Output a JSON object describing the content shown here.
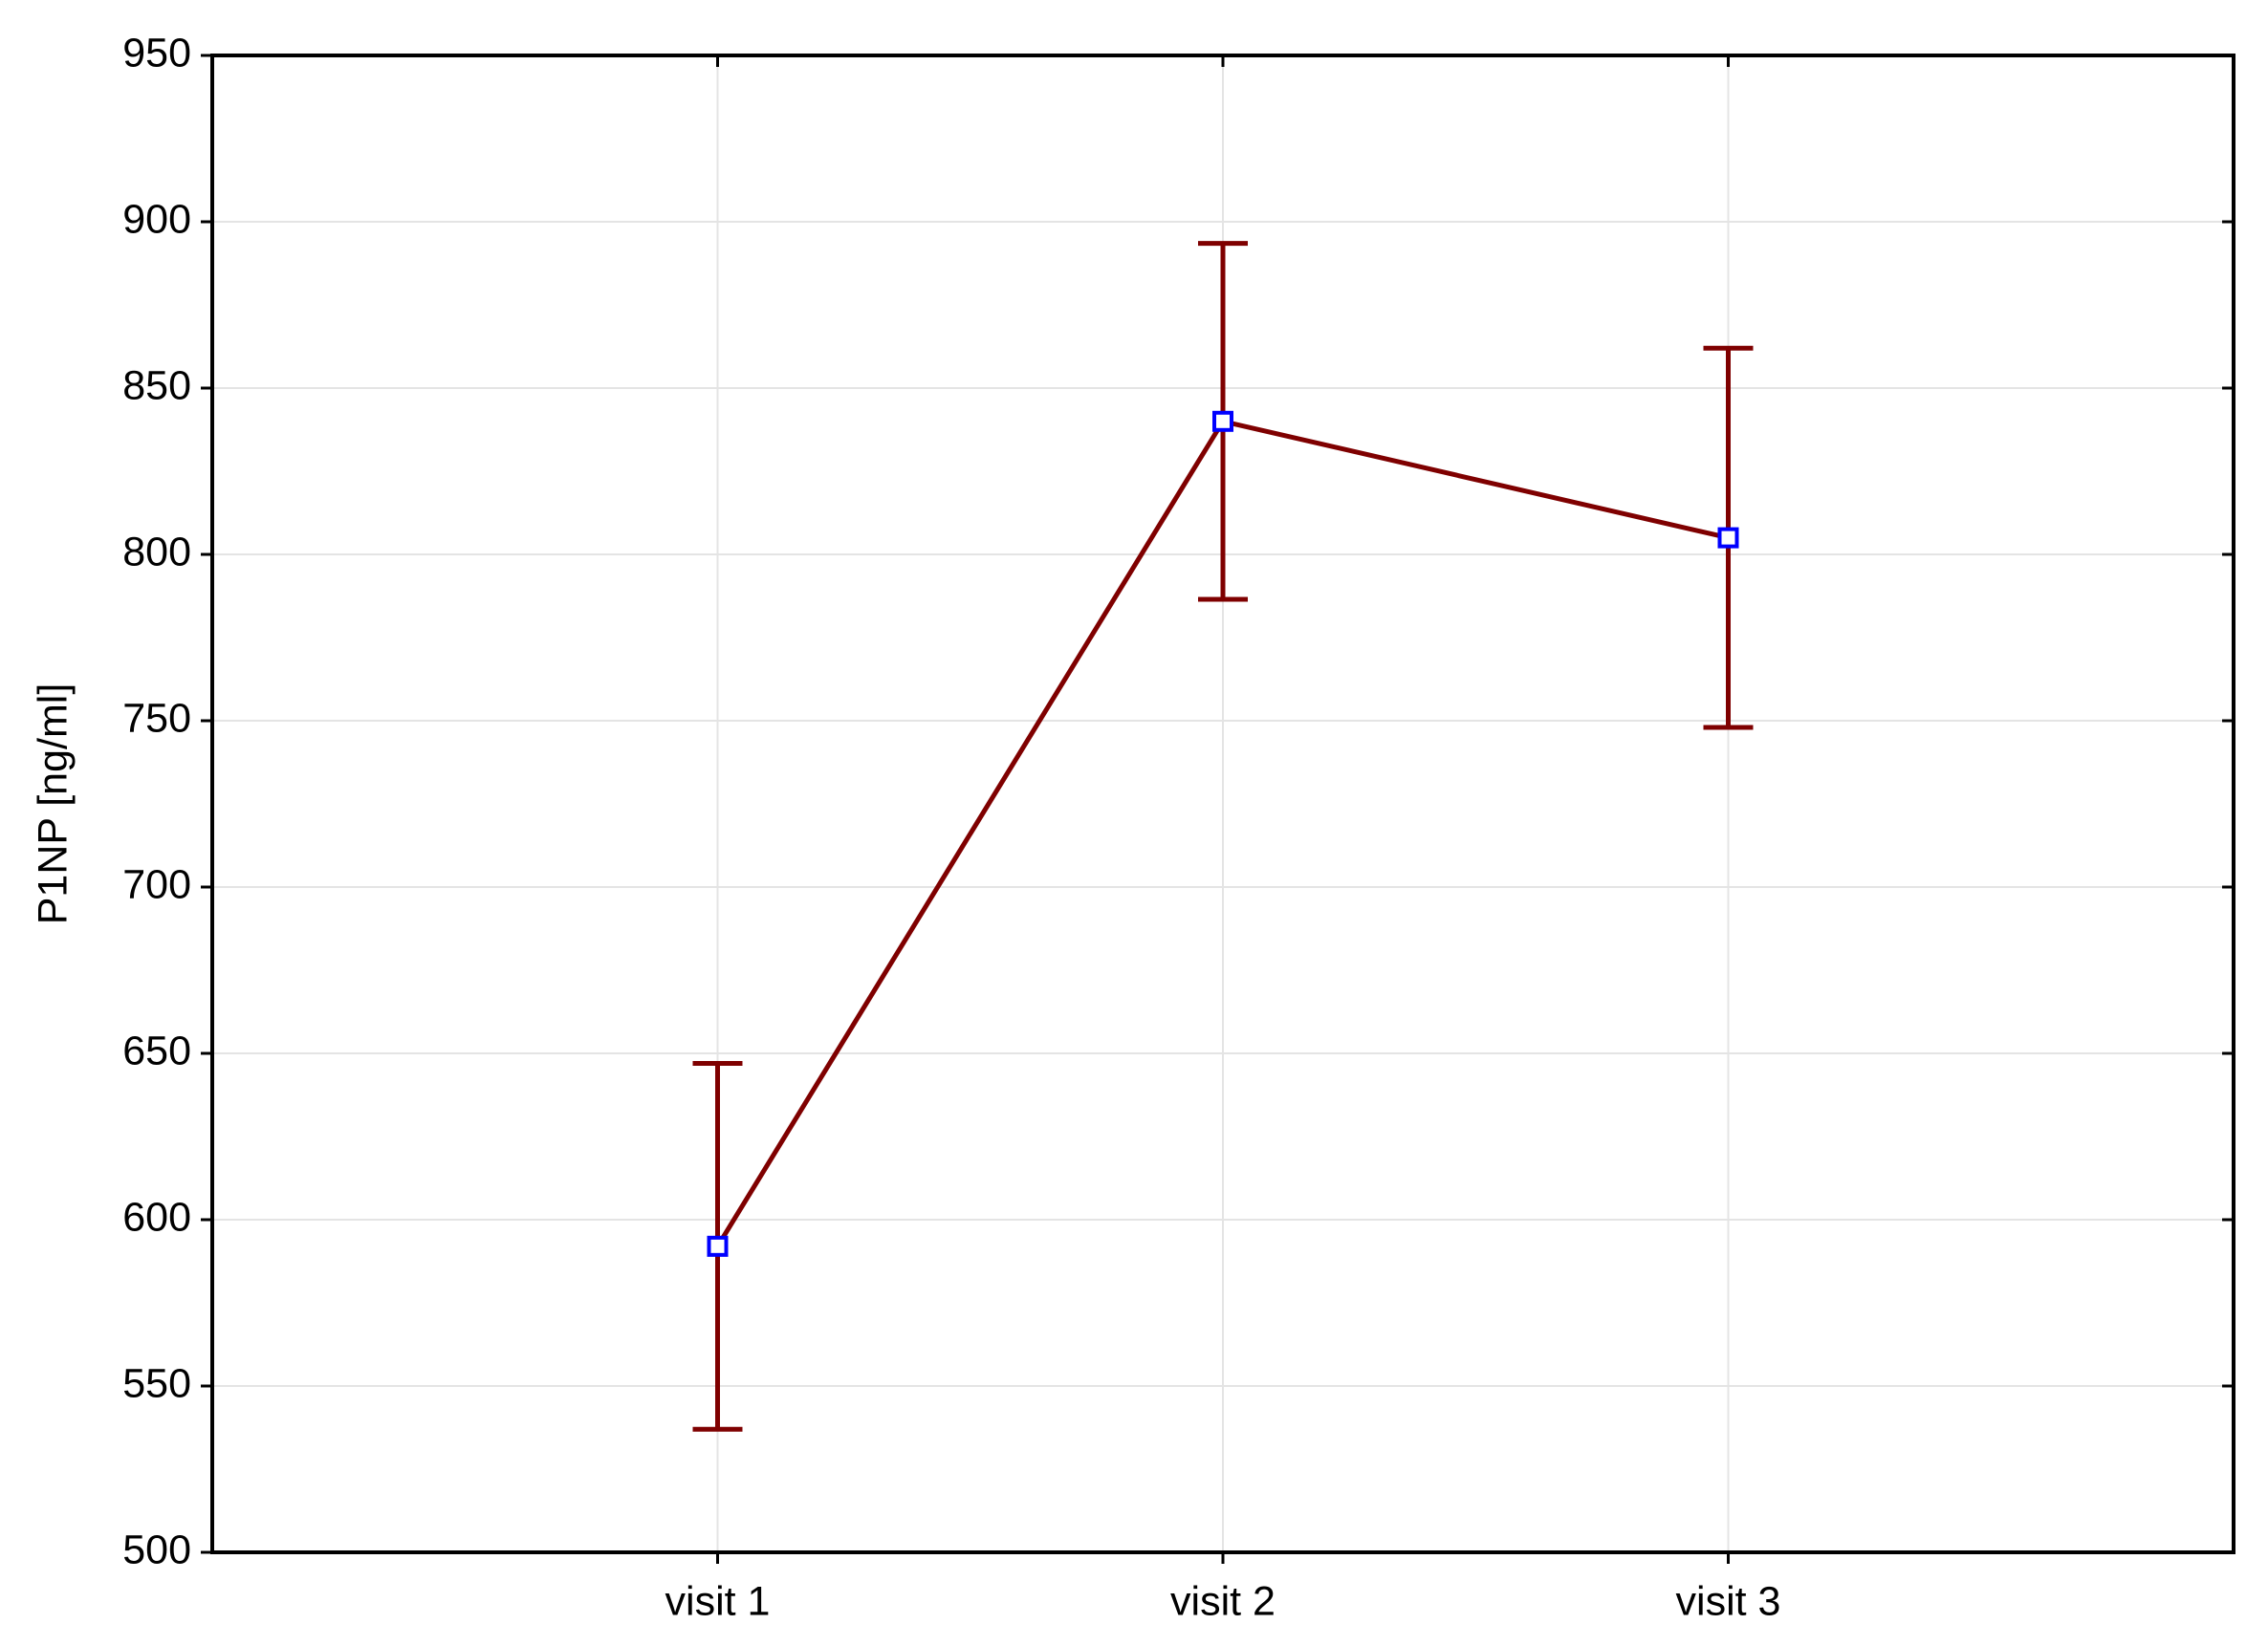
{
  "chart_data": {
    "type": "line",
    "y_label": "P1NP [ng/ml]",
    "categories": [
      "visit 1",
      "visit 2",
      "visit 3"
    ],
    "series": [
      {
        "color": "#7f0000",
        "marker_color": "#0000ff",
        "values": [
          592,
          840,
          805
        ],
        "errors": [
          55,
          53.5,
          57
        ]
      }
    ],
    "ylim": [
      500,
      950
    ],
    "yticks": [
      500,
      550,
      600,
      650,
      700,
      750,
      800,
      850,
      900,
      950
    ],
    "grid": true
  }
}
